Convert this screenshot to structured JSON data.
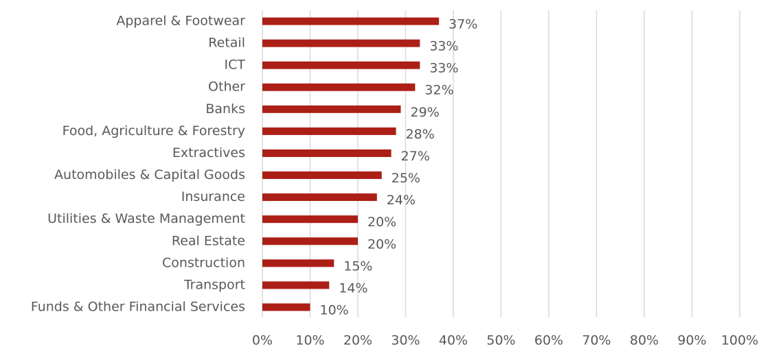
{
  "chart_data": {
    "type": "bar",
    "orientation": "horizontal",
    "categories": [
      "Apparel & Footwear",
      "Retail",
      "ICT",
      "Other",
      "Banks",
      "Food, Agriculture & Forestry",
      "Extractives",
      "Automobiles & Capital Goods",
      "Insurance",
      "Utilities & Waste Management",
      "Real Estate",
      "Construction",
      "Transport",
      "Funds & Other Financial Services"
    ],
    "values": [
      37,
      33,
      33,
      32,
      29,
      28,
      27,
      25,
      24,
      20,
      20,
      15,
      14,
      10
    ],
    "value_labels": [
      "37%",
      "33%",
      "33%",
      "32%",
      "29%",
      "28%",
      "27%",
      "25%",
      "24%",
      "20%",
      "20%",
      "15%",
      "14%",
      "10%"
    ],
    "color": "#ac1f16",
    "xlim": [
      0,
      100
    ],
    "xticks": [
      {
        "value": 0,
        "label": "0%"
      },
      {
        "value": 10,
        "label": "10%"
      },
      {
        "value": 20,
        "label": "20%"
      },
      {
        "value": 30,
        "label": "30%"
      },
      {
        "value": 40,
        "label": "40%"
      },
      {
        "value": 50,
        "label": "50%"
      },
      {
        "value": 60,
        "label": "60%"
      },
      {
        "value": 70,
        "label": "70%"
      },
      {
        "value": 80,
        "label": "80%"
      },
      {
        "value": 90,
        "label": "90%"
      },
      {
        "value": 100,
        "label": "100%"
      }
    ],
    "grid": true
  }
}
